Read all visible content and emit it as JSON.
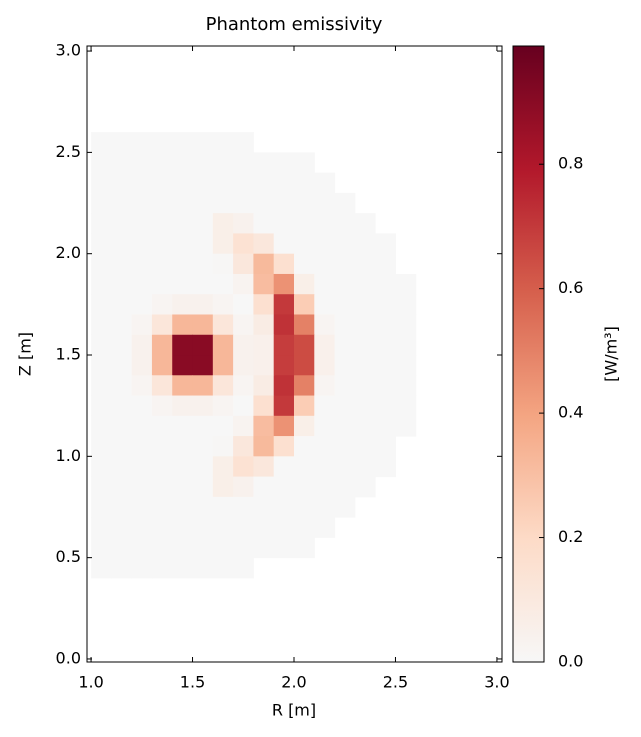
{
  "chart_data": {
    "type": "heatmap",
    "title": "Phantom emissivity",
    "xlabel": "R [m]",
    "ylabel": "Z [m]",
    "colorbar_label": "[W/m³]",
    "x": [
      1.05,
      1.15,
      1.25,
      1.35,
      1.45,
      1.55,
      1.65,
      1.75,
      1.85,
      1.95,
      2.05,
      2.15,
      2.25,
      2.35,
      2.45,
      2.55
    ],
    "y": [
      2.55,
      2.45,
      2.35,
      2.25,
      2.15,
      2.05,
      1.95,
      1.85,
      1.75,
      1.65,
      1.55,
      1.45,
      1.35,
      1.25,
      1.15,
      1.05,
      0.95,
      0.85,
      0.75,
      0.65,
      0.55,
      0.45
    ],
    "z": [
      [
        0,
        0,
        0,
        0,
        0,
        0,
        0,
        0,
        null,
        null,
        null,
        null,
        null,
        null,
        null,
        null
      ],
      [
        0,
        0,
        0,
        0,
        0,
        0,
        0,
        0,
        0,
        0,
        0,
        null,
        null,
        null,
        null,
        null
      ],
      [
        0,
        0,
        0,
        0,
        0,
        0,
        0,
        0,
        0,
        0,
        0,
        0,
        null,
        null,
        null,
        null
      ],
      [
        0,
        0,
        0,
        0,
        0,
        0,
        0,
        0,
        0,
        0,
        0,
        0,
        0,
        null,
        null,
        null
      ],
      [
        0,
        0,
        0,
        0,
        0,
        0,
        0.06,
        0.04,
        0,
        0,
        0,
        0,
        0,
        0,
        null,
        null
      ],
      [
        0,
        0,
        0,
        0,
        0,
        0,
        0.06,
        0.15,
        0.11,
        0,
        0,
        0,
        0,
        0,
        0,
        null
      ],
      [
        0,
        0,
        0,
        0,
        0,
        0,
        0.01,
        0.11,
        0.32,
        0.16,
        0,
        0,
        0,
        0,
        0,
        null
      ],
      [
        0,
        0,
        0,
        0,
        0,
        0,
        0,
        0.03,
        0.31,
        0.45,
        0.06,
        0,
        0,
        0,
        0,
        0
      ],
      [
        0,
        0,
        0,
        0.02,
        0.04,
        0.04,
        0.02,
        0,
        0.16,
        0.7,
        0.25,
        0,
        0,
        0,
        0,
        0
      ],
      [
        0,
        0,
        0.02,
        0.12,
        0.33,
        0.33,
        0.12,
        0.02,
        0.08,
        0.72,
        0.5,
        0.02,
        0,
        0,
        0,
        0
      ],
      [
        0,
        0,
        0.04,
        0.33,
        0.9,
        0.9,
        0.33,
        0.04,
        0.05,
        0.69,
        0.65,
        0.05,
        0,
        0,
        0,
        0
      ],
      [
        0,
        0,
        0.04,
        0.33,
        0.9,
        0.9,
        0.33,
        0.04,
        0.05,
        0.69,
        0.65,
        0.05,
        0,
        0,
        0,
        0
      ],
      [
        0,
        0,
        0.02,
        0.12,
        0.33,
        0.33,
        0.12,
        0.02,
        0.08,
        0.72,
        0.5,
        0.02,
        0,
        0,
        0,
        0
      ],
      [
        0,
        0,
        0,
        0.02,
        0.04,
        0.04,
        0.02,
        0,
        0.16,
        0.7,
        0.25,
        0,
        0,
        0,
        0,
        0
      ],
      [
        0,
        0,
        0,
        0,
        0,
        0,
        0,
        0.03,
        0.31,
        0.45,
        0.06,
        0,
        0,
        0,
        0,
        0
      ],
      [
        0,
        0,
        0,
        0,
        0,
        0,
        0.01,
        0.11,
        0.32,
        0.16,
        0,
        0,
        0,
        0,
        0,
        null
      ],
      [
        0,
        0,
        0,
        0,
        0,
        0,
        0.06,
        0.15,
        0.11,
        0,
        0,
        0,
        0,
        0,
        0,
        null
      ],
      [
        0,
        0,
        0,
        0,
        0,
        0,
        0.06,
        0.04,
        0,
        0,
        0,
        0,
        0,
        0,
        null,
        null
      ],
      [
        0,
        0,
        0,
        0,
        0,
        0,
        0,
        0,
        0,
        0,
        0,
        0,
        0,
        null,
        null,
        null
      ],
      [
        0,
        0,
        0,
        0,
        0,
        0,
        0,
        0,
        0,
        0,
        0,
        0,
        null,
        null,
        null,
        null
      ],
      [
        0,
        0,
        0,
        0,
        0,
        0,
        0,
        0,
        0,
        0,
        0,
        null,
        null,
        null,
        null,
        null
      ],
      [
        0,
        0,
        0,
        0,
        0,
        0,
        0,
        0,
        null,
        null,
        null,
        null,
        null,
        null,
        null,
        null
      ]
    ],
    "xlim": [
      0.98,
      3.025
    ],
    "ylim": [
      -0.015,
      3.025
    ],
    "xticks": [
      {
        "value": 1,
        "label": "1.0"
      },
      1.5,
      {
        "value": 2,
        "label": "2.0"
      },
      2.5,
      {
        "value": 3,
        "label": "3.0"
      }
    ],
    "yticks": [
      {
        "value": 0,
        "label": "0.0"
      },
      0.5,
      {
        "value": 1,
        "label": "1.0"
      },
      1.5,
      {
        "value": 2,
        "label": "2.0"
      },
      2.5,
      {
        "value": 3,
        "label": "3.0"
      }
    ],
    "clim": [
      0,
      0.99
    ],
    "cticks": [
      {
        "value": 0,
        "label": "0.0"
      },
      0.2,
      0.4,
      0.6,
      0.8
    ],
    "colormap": [
      "#f7f7f7",
      "#fddbc7",
      "#f4a582",
      "#d6604d",
      "#b2182b",
      "#67001f"
    ]
  }
}
